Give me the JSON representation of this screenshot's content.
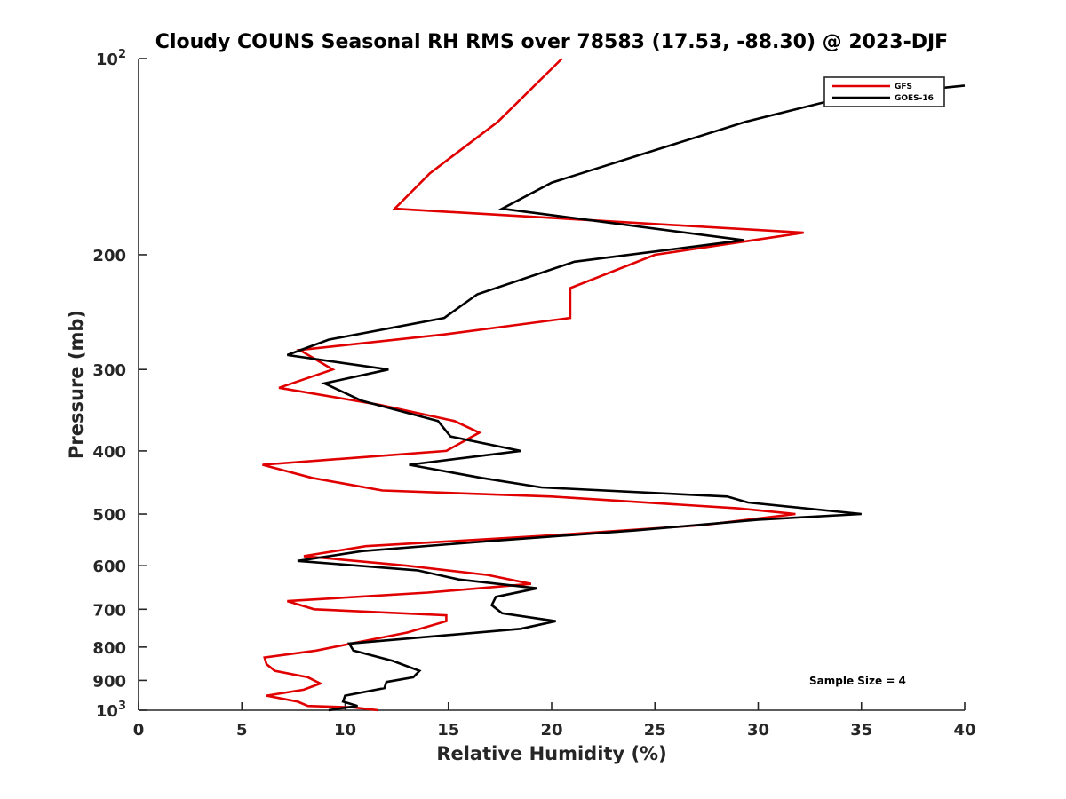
{
  "chart_data": {
    "type": "line",
    "title": "Cloudy COUNS Seasonal RH RMS over 78583 (17.53, -88.30) @ 2023-DJF",
    "xlabel": "Relative Humidity (%)",
    "ylabel": "Pressure (mb)",
    "xlim": [
      0,
      40
    ],
    "ylim": [
      100,
      1000
    ],
    "y_scale": "log",
    "y_reversed": true,
    "x_ticks": [
      0,
      5,
      10,
      15,
      20,
      25,
      30,
      35,
      40
    ],
    "x_tick_labels": [
      "0",
      "5",
      "10",
      "15",
      "20",
      "25",
      "30",
      "35",
      "40"
    ],
    "y_ticks": [
      {
        "value": 100,
        "base": "10",
        "exp": "2"
      },
      {
        "value": 200,
        "label": "200"
      },
      {
        "value": 300,
        "label": "300"
      },
      {
        "value": 400,
        "label": "400"
      },
      {
        "value": 500,
        "label": "500"
      },
      {
        "value": 600,
        "label": "600"
      },
      {
        "value": 700,
        "label": "700"
      },
      {
        "value": 800,
        "label": "800"
      },
      {
        "value": 900,
        "label": "900"
      },
      {
        "value": 1000,
        "base": "10",
        "exp": "3"
      }
    ],
    "legend_position": "top-right",
    "annotation": "Sample Size = 4",
    "series": [
      {
        "name": "GFS",
        "color": "#e00000",
        "points": [
          [
            20.5,
            100
          ],
          [
            17.4,
            125
          ],
          [
            14.1,
            150
          ],
          [
            12.4,
            170
          ],
          [
            32.2,
            185
          ],
          [
            25.0,
            200
          ],
          [
            20.9,
            225
          ],
          [
            20.9,
            250
          ],
          [
            14.8,
            265
          ],
          [
            7.8,
            280
          ],
          [
            9.4,
            300
          ],
          [
            6.8,
            320
          ],
          [
            11.7,
            340
          ],
          [
            15.3,
            360
          ],
          [
            16.5,
            375
          ],
          [
            14.9,
            400
          ],
          [
            6.0,
            420
          ],
          [
            8.4,
            440
          ],
          [
            11.8,
            460
          ],
          [
            20.0,
            470
          ],
          [
            29.0,
            490
          ],
          [
            31.8,
            500
          ],
          [
            27.3,
            520
          ],
          [
            19.6,
            540
          ],
          [
            11.0,
            560
          ],
          [
            8.0,
            580
          ],
          [
            13.0,
            600
          ],
          [
            16.9,
            620
          ],
          [
            19.0,
            640
          ],
          [
            14.0,
            660
          ],
          [
            7.2,
            680
          ],
          [
            8.5,
            700
          ],
          [
            14.9,
            715
          ],
          [
            14.9,
            730
          ],
          [
            13.0,
            760
          ],
          [
            10.3,
            790
          ],
          [
            8.6,
            810
          ],
          [
            6.1,
            830
          ],
          [
            6.2,
            850
          ],
          [
            6.6,
            870
          ],
          [
            8.2,
            890
          ],
          [
            8.8,
            910
          ],
          [
            8.0,
            930
          ],
          [
            6.2,
            950
          ],
          [
            7.7,
            970
          ],
          [
            8.2,
            985
          ],
          [
            10.4,
            990
          ],
          [
            11.6,
            1000
          ]
        ]
      },
      {
        "name": "GOES-16",
        "color": "#000000",
        "points": [
          [
            40.0,
            110
          ],
          [
            34.0,
            115
          ],
          [
            29.4,
            125
          ],
          [
            20.0,
            155
          ],
          [
            17.6,
            170
          ],
          [
            29.3,
            190
          ],
          [
            21.1,
            205
          ],
          [
            16.4,
            230
          ],
          [
            14.8,
            250
          ],
          [
            9.2,
            270
          ],
          [
            7.2,
            285
          ],
          [
            12.1,
            300
          ],
          [
            9.0,
            315
          ],
          [
            10.8,
            335
          ],
          [
            14.5,
            360
          ],
          [
            15.1,
            380
          ],
          [
            18.5,
            400
          ],
          [
            13.1,
            420
          ],
          [
            16.6,
            440
          ],
          [
            19.5,
            455
          ],
          [
            28.5,
            470
          ],
          [
            29.5,
            480
          ],
          [
            35.0,
            500
          ],
          [
            30.0,
            510
          ],
          [
            24.0,
            530
          ],
          [
            17.0,
            550
          ],
          [
            10.8,
            570
          ],
          [
            7.7,
            590
          ],
          [
            13.5,
            610
          ],
          [
            15.5,
            630
          ],
          [
            19.3,
            650
          ],
          [
            17.3,
            670
          ],
          [
            17.1,
            690
          ],
          [
            17.6,
            710
          ],
          [
            20.2,
            730
          ],
          [
            18.5,
            750
          ],
          [
            10.2,
            790
          ],
          [
            10.4,
            810
          ],
          [
            12.3,
            840
          ],
          [
            13.6,
            870
          ],
          [
            13.3,
            890
          ],
          [
            12.0,
            905
          ],
          [
            11.9,
            925
          ],
          [
            10.0,
            950
          ],
          [
            9.9,
            970
          ],
          [
            10.6,
            985
          ],
          [
            9.2,
            1000
          ]
        ]
      }
    ]
  }
}
